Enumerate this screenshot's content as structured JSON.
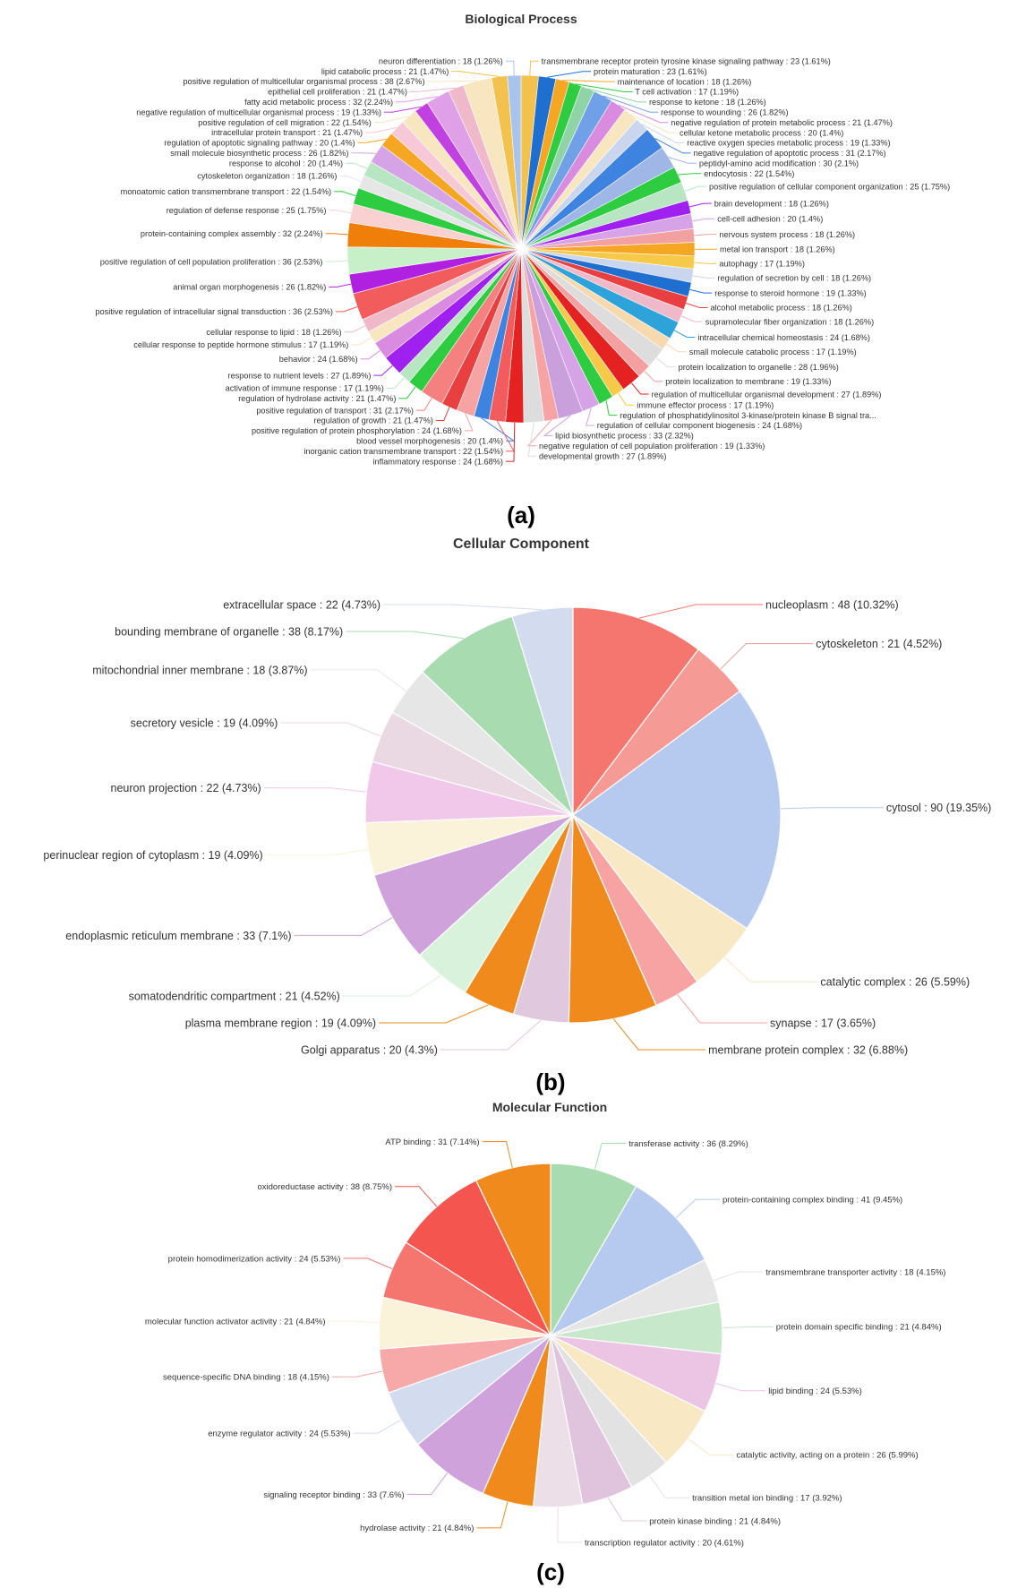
{
  "chart_data": [
    {
      "type": "pie",
      "panel": "(a)",
      "title": "Biological Process",
      "slices": [
        {
          "label": "transmembrane receptor protein tyrosine kinase signaling pathway : 23 (1.61%)",
          "value": 23,
          "color": "#f2c14e"
        },
        {
          "label": "protein maturation : 23 (1.61%)",
          "value": 23,
          "color": "#1f6fd1"
        },
        {
          "label": "maintenance of location : 18 (1.26%)",
          "value": 18,
          "color": "#f5a623"
        },
        {
          "label": "T cell activation : 17 (1.19%)",
          "value": 17,
          "color": "#2ecc40"
        },
        {
          "label": "response to ketone : 18 (1.26%)",
          "value": 18,
          "color": "#8fd3a6"
        },
        {
          "label": "response to wounding : 26 (1.82%)",
          "value": 26,
          "color": "#6fa0e8"
        },
        {
          "label": "negative regulation of protein metabolic process : 21 (1.47%)",
          "value": 21,
          "color": "#d98be0"
        },
        {
          "label": "cellular ketone metabolic process : 20 (1.4%)",
          "value": 20,
          "color": "#f7e6c0"
        },
        {
          "label": "reactive oxygen species metabolic process : 19 (1.33%)",
          "value": 19,
          "color": "#c9d6ee"
        },
        {
          "label": "negative regulation of apoptotic process : 31 (2.17%)",
          "value": 31,
          "color": "#3f83e0"
        },
        {
          "label": "peptidyl-amino acid modification : 30 (2.1%)",
          "value": 30,
          "color": "#9fb7e6"
        },
        {
          "label": "endocytosis : 22 (1.54%)",
          "value": 22,
          "color": "#2ecc40"
        },
        {
          "label": "positive regulation of cellular component organization : 25 (1.75%)",
          "value": 25,
          "color": "#b9e6c2"
        },
        {
          "label": "brain development : 18 (1.26%)",
          "value": 18,
          "color": "#a020f0"
        },
        {
          "label": "cell-cell adhesion : 20 (1.4%)",
          "value": 20,
          "color": "#d5a3e6"
        },
        {
          "label": "nervous system process : 18 (1.26%)",
          "value": 18,
          "color": "#f2a0a0"
        },
        {
          "label": "metal ion transport : 18 (1.26%)",
          "value": 18,
          "color": "#f5a623"
        },
        {
          "label": "autophagy : 17 (1.19%)",
          "value": 17,
          "color": "#f7c948"
        },
        {
          "label": "regulation of secretion by cell : 18 (1.26%)",
          "value": 18,
          "color": "#c9d6ee"
        },
        {
          "label": "response to steroid hormone : 19 (1.33%)",
          "value": 19,
          "color": "#1f6fd1"
        },
        {
          "label": "alcohol metabolic process : 18 (1.26%)",
          "value": 18,
          "color": "#e84040"
        },
        {
          "label": "supramolecular fiber organization : 18 (1.26%)",
          "value": 18,
          "color": "#f0b9c9"
        },
        {
          "label": "intracellular chemical homeostasis : 24 (1.68%)",
          "value": 24,
          "color": "#2ea3d9"
        },
        {
          "label": "small molecule catabolic process : 17 (1.19%)",
          "value": 17,
          "color": "#f7d9b0"
        },
        {
          "label": "protein localization to organelle : 28 (1.96%)",
          "value": 28,
          "color": "#dddddd"
        },
        {
          "label": "protein localization to membrane : 19 (1.33%)",
          "value": 19,
          "color": "#f5a0a0"
        },
        {
          "label": "regulation of multicellular organismal development : 27 (1.89%)",
          "value": 27,
          "color": "#e52222"
        },
        {
          "label": "immune effector process : 17 (1.19%)",
          "value": 17,
          "color": "#f7c948"
        },
        {
          "label": "regulation of phosphatidylinositol 3-kinase/protein kinase B signal tra...",
          "value": 20,
          "color": "#2ecc40"
        },
        {
          "label": "regulation of cellular component biogenesis : 24 (1.68%)",
          "value": 24,
          "color": "#d5a3e6"
        },
        {
          "label": "lipid biosynthetic process : 33 (2.32%)",
          "value": 33,
          "color": "#c9a0dc"
        },
        {
          "label": "negative regulation of cell population proliferation : 19 (1.33%)",
          "value": 19,
          "color": "#f7a3a3"
        },
        {
          "label": "developmental growth : 27 (1.89%)",
          "value": 27,
          "color": "#dddddd"
        },
        {
          "label": "inflammatory response : 24 (1.68%)",
          "value": 24,
          "color": "#e52222"
        },
        {
          "label": "inorganic cation transmembrane transport : 22 (1.54%)",
          "value": 22,
          "color": "#f25c5c"
        },
        {
          "label": "blood vessel morphogenesis : 20 (1.4%)",
          "value": 20,
          "color": "#3f83e0"
        },
        {
          "label": "positive regulation of protein phosphorylation : 24 (1.68%)",
          "value": 24,
          "color": "#f7a3a3"
        },
        {
          "label": "regulation of growth : 21 (1.47%)",
          "value": 21,
          "color": "#e84040"
        },
        {
          "label": "positive regulation of transport : 31 (2.17%)",
          "value": 31,
          "color": "#f58080"
        },
        {
          "label": "regulation of hydrolase activity : 21 (1.47%)",
          "value": 21,
          "color": "#2ecc40"
        },
        {
          "label": "activation of immune response : 17 (1.19%)",
          "value": 17,
          "color": "#b9e6c2"
        },
        {
          "label": "response to nutrient levels : 27 (1.89%)",
          "value": 27,
          "color": "#a020f0"
        },
        {
          "label": "behavior : 24 (1.68%)",
          "value": 24,
          "color": "#d98be0"
        },
        {
          "label": "cellular response to peptide hormone stimulus : 17 (1.19%)",
          "value": 17,
          "color": "#f7e6c0"
        },
        {
          "label": "cellular response to lipid : 18 (1.26%)",
          "value": 18,
          "color": "#f0b9c9"
        },
        {
          "label": "positive regulation of intracellular signal transduction : 36 (2.53%)",
          "value": 36,
          "color": "#f25c5c"
        },
        {
          "label": "animal organ morphogenesis : 26 (1.82%)",
          "value": 26,
          "color": "#b020e0"
        },
        {
          "label": "positive regulation of cell population proliferation : 36 (2.53%)",
          "value": 36,
          "color": "#c8f0c8"
        },
        {
          "label": "protein-containing complex assembly : 32 (2.24%)",
          "value": 32,
          "color": "#f07f0a"
        },
        {
          "label": "regulation of defense response : 25 (1.75%)",
          "value": 25,
          "color": "#f9d1d1"
        },
        {
          "label": "monoatomic cation transmembrane transport : 22 (1.54%)",
          "value": 22,
          "color": "#2ecc40"
        },
        {
          "label": "cytoskeleton organization : 18 (1.26%)",
          "value": 18,
          "color": "#e6e6e6"
        },
        {
          "label": "response to alcohol : 20 (1.4%)",
          "value": 20,
          "color": "#b9e6c2"
        },
        {
          "label": "small molecule biosynthetic process : 26 (1.82%)",
          "value": 26,
          "color": "#d5a3e6"
        },
        {
          "label": "regulation of apoptotic signaling pathway : 20 (1.4%)",
          "value": 20,
          "color": "#f5a623"
        },
        {
          "label": "intracellular protein transport : 21 (1.47%)",
          "value": 21,
          "color": "#f7c8d8"
        },
        {
          "label": "positive regulation of cell migration : 22 (1.54%)",
          "value": 22,
          "color": "#f7e6c0"
        },
        {
          "label": "negative regulation of multicellular organismal process : 19 (1.33%)",
          "value": 19,
          "color": "#c040e0"
        },
        {
          "label": "fatty acid metabolic process : 32 (2.24%)",
          "value": 32,
          "color": "#e0a0e8"
        },
        {
          "label": "epithelial cell proliferation : 21 (1.47%)",
          "value": 21,
          "color": "#f0b9c9"
        },
        {
          "label": "positive regulation of multicellular organismal process : 38 (2.67%)",
          "value": 38,
          "color": "#f7e6c0"
        },
        {
          "label": "lipid catabolic process : 21 (1.47%)",
          "value": 21,
          "color": "#f2c14e"
        },
        {
          "label": "neuron differentiation : 18 (1.26%)",
          "value": 18,
          "color": "#a8c4ec"
        }
      ]
    },
    {
      "type": "pie",
      "panel": "(b)",
      "title": "Cellular Component",
      "slices": [
        {
          "label": "nucleoplasm : 48 (10.32%)",
          "value": 48,
          "color": "#f4766f"
        },
        {
          "label": "cytoskeleton : 21 (4.52%)",
          "value": 21,
          "color": "#f59a95"
        },
        {
          "label": "cytosol : 90 (19.35%)",
          "value": 90,
          "color": "#b6c9ee"
        },
        {
          "label": "catalytic complex : 26 (5.59%)",
          "value": 26,
          "color": "#f8e8c4"
        },
        {
          "label": "synapse : 17 (3.65%)",
          "value": 17,
          "color": "#f7a3a3"
        },
        {
          "label": "membrane protein complex : 32 (6.88%)",
          "value": 32,
          "color": "#f08a1c"
        },
        {
          "label": "Golgi apparatus : 20 (4.3%)",
          "value": 20,
          "color": "#e0c8de"
        },
        {
          "label": "plasma membrane region : 19 (4.09%)",
          "value": 19,
          "color": "#f08a1c"
        },
        {
          "label": "somatodendritic compartment : 21 (4.52%)",
          "value": 21,
          "color": "#d8f2dc"
        },
        {
          "label": "endoplasmic reticulum membrane : 33 (7.1%)",
          "value": 33,
          "color": "#cfa2dc"
        },
        {
          "label": "perinuclear region of cytoplasm : 19 (4.09%)",
          "value": 19,
          "color": "#fbf2da"
        },
        {
          "label": "neuron projection : 22 (4.73%)",
          "value": 22,
          "color": "#f2c8ea"
        },
        {
          "label": "secretory vesicle : 19 (4.09%)",
          "value": 19,
          "color": "#ead8e2"
        },
        {
          "label": "mitochondrial inner membrane : 18 (3.87%)",
          "value": 18,
          "color": "#e6e6e6"
        },
        {
          "label": "bounding membrane of organelle : 38 (8.17%)",
          "value": 38,
          "color": "#a8dcb0"
        },
        {
          "label": "extracellular space : 22 (4.73%)",
          "value": 22,
          "color": "#d3dcef"
        }
      ]
    },
    {
      "type": "pie",
      "panel": "(c)",
      "title": "Molecular Function",
      "slices": [
        {
          "label": "transferase activity : 36 (8.29%)",
          "value": 36,
          "color": "#a8dcb0"
        },
        {
          "label": "protein-containing complex binding : 41 (9.45%)",
          "value": 41,
          "color": "#b6c9ee"
        },
        {
          "label": "transmembrane transporter activity : 18 (4.15%)",
          "value": 18,
          "color": "#e6e6e6"
        },
        {
          "label": "protein domain specific binding : 21 (4.84%)",
          "value": 21,
          "color": "#c8e8cc"
        },
        {
          "label": "lipid binding : 24 (5.53%)",
          "value": 24,
          "color": "#ecc4e4"
        },
        {
          "label": "catalytic activity, acting on a protein : 26 (5.99%)",
          "value": 26,
          "color": "#f8e8c4"
        },
        {
          "label": "transition metal ion binding : 17 (3.92%)",
          "value": 17,
          "color": "#e2e2e2"
        },
        {
          "label": "protein kinase binding : 21 (4.84%)",
          "value": 21,
          "color": "#e0c4de"
        },
        {
          "label": "transcription regulator activity : 20 (4.61%)",
          "value": 20,
          "color": "#ecdfe8"
        },
        {
          "label": "hydrolase activity : 21 (4.84%)",
          "value": 21,
          "color": "#f08a1c"
        },
        {
          "label": "signaling receptor binding : 33 (7.6%)",
          "value": 33,
          "color": "#cfa2dc"
        },
        {
          "label": "enzyme regulator activity : 24 (5.53%)",
          "value": 24,
          "color": "#d3dcef"
        },
        {
          "label": "sequence-specific DNA binding : 18 (4.15%)",
          "value": 18,
          "color": "#f7a8a8"
        },
        {
          "label": "molecular function activator activity : 21 (4.84%)",
          "value": 21,
          "color": "#fbf2da"
        },
        {
          "label": "protein homodimerization activity : 24 (5.53%)",
          "value": 24,
          "color": "#f4766f"
        },
        {
          "label": "oxidoreductase activity : 38 (8.75%)",
          "value": 38,
          "color": "#f4564f"
        },
        {
          "label": "ATP binding : 31 (7.14%)",
          "value": 31,
          "color": "#f08a1c"
        }
      ]
    }
  ]
}
